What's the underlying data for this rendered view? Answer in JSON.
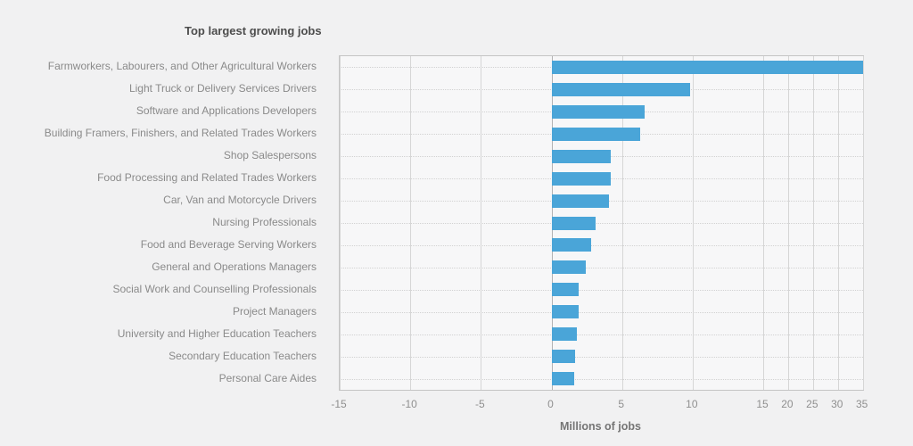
{
  "chart_data": {
    "type": "bar",
    "orientation": "horizontal",
    "title": "Top largest growing jobs",
    "xlabel": "Millions of jobs",
    "categories": [
      "Farmworkers, Labourers, and Other Agricultural Workers",
      "Light Truck or Delivery Services Drivers",
      "Software and Applications Developers",
      "Building Framers, Finishers, and Related Trades Workers",
      "Shop Salespersons",
      "Food Processing and Related Trades Workers",
      "Car, Van and Motorcycle Drivers",
      "Nursing Professionals",
      "Food and Beverage Serving Workers",
      "General and Operations Managers",
      "Social Work and Counselling Professionals",
      "Project Managers",
      "University and Higher Education Teachers",
      "Secondary Education Teachers",
      "Personal Care Aides"
    ],
    "values": [
      35.0,
      9.8,
      6.6,
      6.3,
      4.2,
      4.2,
      4.1,
      3.1,
      2.8,
      2.4,
      1.9,
      1.9,
      1.8,
      1.7,
      1.6
    ],
    "xticks": [
      -15,
      -10,
      -5,
      0,
      5,
      10,
      15,
      20,
      25,
      30,
      35
    ],
    "xlim": [
      -15,
      35
    ],
    "axis_note": "x axis is compressed beyond 15 (ticks 15-35 closely spaced)",
    "grid": true,
    "legend": "none",
    "colors": {
      "bar": "#4aa5d8",
      "page_background": "#f1f1f2",
      "plot_background": "#f7f7f8",
      "gridline": "#d6d6d6",
      "zero_line": "#b3b3b3",
      "title_text": "#4d4d4d",
      "label_text": "#8a8a8a"
    }
  }
}
